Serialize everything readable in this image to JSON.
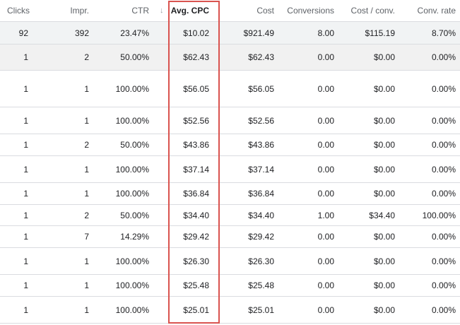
{
  "table": {
    "columns": [
      "Clicks",
      "Impr.",
      "CTR",
      "Avg. CPC",
      "Cost",
      "Conversions",
      "Cost / conv.",
      "Conv. rate"
    ],
    "sorted_column": "Avg. CPC",
    "sort_icon": "arrow-down-icon",
    "highlight_color": "#d9534f",
    "total": [
      "92",
      "392",
      "23.47%",
      "$10.02",
      "$921.49",
      "8.00",
      "$115.19",
      "8.70%"
    ],
    "rows": [
      [
        "1",
        "2",
        "50.00%",
        "$62.43",
        "$62.43",
        "0.00",
        "$0.00",
        "0.00%"
      ],
      [
        "1",
        "1",
        "100.00%",
        "$56.05",
        "$56.05",
        "0.00",
        "$0.00",
        "0.00%"
      ],
      [
        "1",
        "1",
        "100.00%",
        "$52.56",
        "$52.56",
        "0.00",
        "$0.00",
        "0.00%"
      ],
      [
        "1",
        "2",
        "50.00%",
        "$43.86",
        "$43.86",
        "0.00",
        "$0.00",
        "0.00%"
      ],
      [
        "1",
        "1",
        "100.00%",
        "$37.14",
        "$37.14",
        "0.00",
        "$0.00",
        "0.00%"
      ],
      [
        "1",
        "1",
        "100.00%",
        "$36.84",
        "$36.84",
        "0.00",
        "$0.00",
        "0.00%"
      ],
      [
        "1",
        "2",
        "50.00%",
        "$34.40",
        "$34.40",
        "1.00",
        "$34.40",
        "100.00%"
      ],
      [
        "1",
        "7",
        "14.29%",
        "$29.42",
        "$29.42",
        "0.00",
        "$0.00",
        "0.00%"
      ],
      [
        "1",
        "1",
        "100.00%",
        "$26.30",
        "$26.30",
        "0.00",
        "$0.00",
        "0.00%"
      ],
      [
        "1",
        "1",
        "100.00%",
        "$25.48",
        "$25.48",
        "0.00",
        "$0.00",
        "0.00%"
      ],
      [
        "1",
        "1",
        "100.00%",
        "$25.01",
        "$25.01",
        "0.00",
        "$0.00",
        "0.00%"
      ]
    ]
  }
}
